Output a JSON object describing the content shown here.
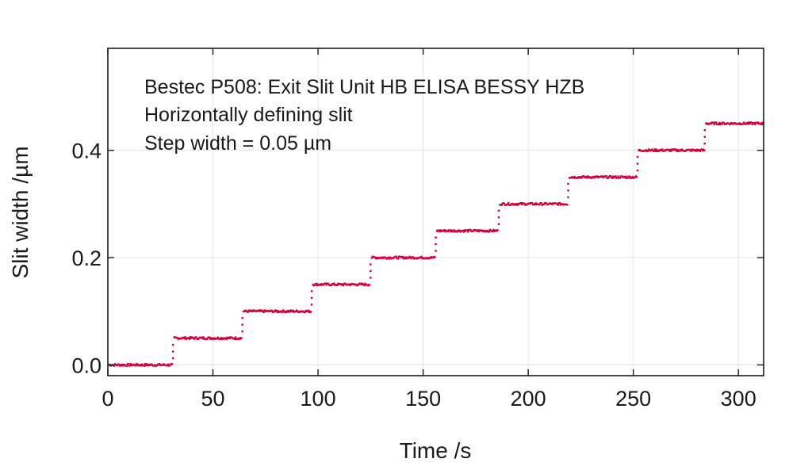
{
  "chart_data": {
    "type": "scatter",
    "title": "",
    "xlabel": "Time /s",
    "ylabel": "Slit width /µm",
    "xlim": [
      0,
      312
    ],
    "ylim": [
      -0.02,
      0.59
    ],
    "grid": true,
    "xticks": [
      0,
      50,
      100,
      150,
      200,
      250,
      300
    ],
    "xtick_labels": [
      "0",
      "50",
      "100",
      "150",
      "200",
      "250",
      "300"
    ],
    "yticks": [
      0.0,
      0.2,
      0.4
    ],
    "ytick_labels": [
      "0.0",
      "0.2",
      "0.4"
    ],
    "annotations": [
      "Bestec P508: Exit Slit Unit HB ELISA BESSY HZB",
      "Horizontally defining slit",
      "Step width = 0.05 µm"
    ],
    "series_color": "#d4003c",
    "steps": [
      {
        "x_start": 0,
        "x_end": 31,
        "y": 0.0
      },
      {
        "x_start": 31,
        "x_end": 64,
        "y": 0.05
      },
      {
        "x_start": 64,
        "x_end": 97,
        "y": 0.1
      },
      {
        "x_start": 97,
        "x_end": 125,
        "y": 0.15
      },
      {
        "x_start": 125,
        "x_end": 156,
        "y": 0.2
      },
      {
        "x_start": 156,
        "x_end": 186,
        "y": 0.25
      },
      {
        "x_start": 186,
        "x_end": 219,
        "y": 0.3
      },
      {
        "x_start": 219,
        "x_end": 252,
        "y": 0.35
      },
      {
        "x_start": 252,
        "x_end": 284,
        "y": 0.4
      },
      {
        "x_start": 284,
        "x_end": 312,
        "y": 0.45
      }
    ]
  }
}
